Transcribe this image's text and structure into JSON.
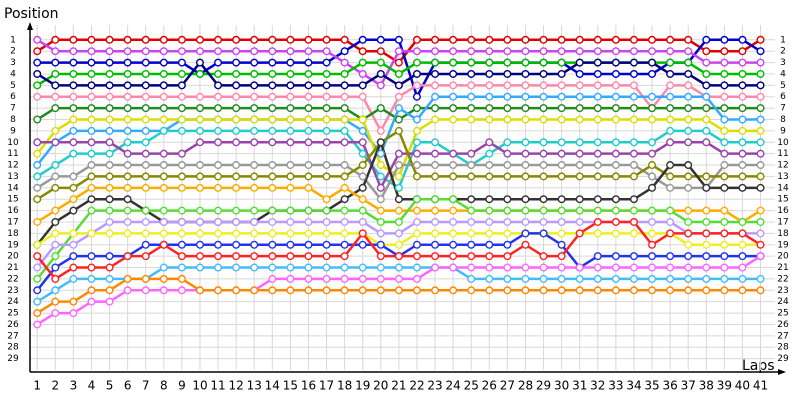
{
  "chart_data": {
    "type": "line",
    "x_label": "Laps",
    "y_label": "Position",
    "y_inverted": true,
    "grid": true,
    "x": [
      1,
      2,
      3,
      4,
      5,
      6,
      7,
      8,
      9,
      10,
      11,
      12,
      13,
      14,
      15,
      16,
      17,
      18,
      19,
      20,
      21,
      22,
      23,
      24,
      25,
      26,
      27,
      28,
      29,
      30,
      31,
      32,
      33,
      34,
      35,
      36,
      37,
      38,
      39,
      40,
      41
    ],
    "xticks": [
      1,
      2,
      3,
      4,
      5,
      6,
      7,
      8,
      9,
      10,
      11,
      12,
      13,
      14,
      15,
      16,
      17,
      18,
      19,
      20,
      21,
      22,
      23,
      24,
      25,
      26,
      27,
      28,
      29,
      30,
      31,
      32,
      33,
      34,
      35,
      36,
      37,
      38,
      39,
      40,
      41
    ],
    "xlim": [
      0.6,
      41.8
    ],
    "ylim": [
      -0.3,
      30
    ],
    "yticks": [
      1,
      2,
      3,
      4,
      5,
      6,
      7,
      8,
      9,
      10,
      11,
      12,
      13,
      14,
      15,
      16,
      17,
      18,
      19,
      20,
      21,
      22,
      23,
      24,
      25,
      26,
      27,
      28,
      29
    ],
    "series": [
      {
        "color": "#e00000",
        "values": [
          2,
          1,
          1,
          1,
          1,
          1,
          1,
          1,
          1,
          1,
          1,
          1,
          1,
          1,
          1,
          1,
          1,
          1,
          2,
          2,
          3,
          1,
          1,
          1,
          1,
          1,
          1,
          1,
          1,
          1,
          1,
          1,
          1,
          1,
          1,
          1,
          1,
          2,
          2,
          2,
          1
        ]
      },
      {
        "color": "#0000cc",
        "values": [
          3,
          3,
          3,
          3,
          3,
          3,
          3,
          3,
          3,
          4,
          3,
          3,
          3,
          3,
          3,
          3,
          3,
          2,
          1,
          1,
          1,
          6,
          3,
          3,
          3,
          3,
          3,
          3,
          3,
          3,
          4,
          4,
          4,
          4,
          4,
          3,
          3,
          1,
          1,
          1,
          2
        ]
      },
      {
        "color": "#cc44ee",
        "values": [
          1,
          2,
          2,
          2,
          2,
          2,
          2,
          2,
          2,
          2,
          2,
          2,
          2,
          2,
          2,
          2,
          2,
          3,
          4,
          5,
          2,
          2,
          2,
          2,
          2,
          2,
          2,
          2,
          2,
          2,
          2,
          2,
          2,
          2,
          2,
          2,
          2,
          3,
          3,
          3,
          3
        ]
      },
      {
        "color": "#00bb00",
        "values": [
          5,
          4,
          4,
          4,
          4,
          4,
          4,
          4,
          4,
          4,
          4,
          4,
          4,
          4,
          4,
          4,
          4,
          4,
          3,
          3,
          4,
          3,
          3,
          3,
          3,
          3,
          3,
          3,
          3,
          3,
          3,
          3,
          3,
          3,
          3,
          3,
          3,
          4,
          4,
          4,
          4
        ]
      },
      {
        "color": "#000080",
        "values": [
          4,
          5,
          5,
          5,
          5,
          5,
          5,
          5,
          5,
          3,
          5,
          5,
          5,
          5,
          5,
          5,
          5,
          5,
          5,
          4,
          5,
          4,
          4,
          4,
          4,
          4,
          4,
          4,
          4,
          4,
          3,
          3,
          3,
          3,
          3,
          4,
          4,
          5,
          5,
          5,
          5
        ]
      },
      {
        "color": "#ff88aa",
        "values": [
          6,
          6,
          6,
          6,
          6,
          6,
          6,
          6,
          6,
          6,
          6,
          6,
          6,
          6,
          6,
          6,
          6,
          6,
          6,
          9,
          6,
          5,
          5,
          5,
          5,
          5,
          5,
          5,
          5,
          5,
          5,
          5,
          5,
          5,
          7,
          5,
          5,
          6,
          6,
          6,
          6
        ]
      },
      {
        "color": "#228822",
        "values": [
          8,
          7,
          7,
          7,
          7,
          7,
          7,
          7,
          7,
          7,
          7,
          7,
          7,
          7,
          7,
          7,
          7,
          7,
          8,
          7,
          8,
          7,
          7,
          7,
          7,
          7,
          7,
          7,
          7,
          7,
          7,
          7,
          7,
          7,
          7,
          7,
          7,
          7,
          7,
          7,
          7
        ]
      },
      {
        "color": "#33aaff",
        "values": [
          12,
          10,
          9,
          9,
          9,
          9,
          9,
          9,
          8,
          8,
          8,
          8,
          8,
          8,
          8,
          8,
          8,
          8,
          9,
          11,
          7,
          8,
          6,
          6,
          6,
          6,
          6,
          6,
          6,
          6,
          6,
          6,
          6,
          6,
          6,
          6,
          6,
          6,
          8,
          8,
          8
        ]
      },
      {
        "color": "#dddd00",
        "values": [
          11,
          9,
          8,
          8,
          8,
          8,
          8,
          8,
          8,
          8,
          8,
          8,
          8,
          8,
          8,
          8,
          8,
          8,
          8,
          12,
          13,
          9,
          8,
          8,
          8,
          8,
          8,
          8,
          8,
          8,
          8,
          8,
          8,
          8,
          8,
          8,
          8,
          8,
          9,
          9,
          9
        ]
      },
      {
        "color": "#22cccc",
        "values": [
          13,
          12,
          11,
          11,
          11,
          10,
          10,
          9,
          9,
          9,
          9,
          9,
          9,
          9,
          9,
          9,
          9,
          9,
          11,
          13,
          14,
          10,
          10,
          11,
          12,
          11,
          10,
          10,
          10,
          10,
          10,
          10,
          10,
          10,
          10,
          9,
          9,
          9,
          10,
          10,
          10
        ]
      },
      {
        "color": "#9944aa",
        "values": [
          10,
          10,
          10,
          10,
          10,
          11,
          11,
          11,
          11,
          10,
          10,
          10,
          10,
          10,
          10,
          10,
          10,
          10,
          10,
          14,
          11,
          11,
          11,
          11,
          11,
          10,
          11,
          11,
          11,
          11,
          11,
          11,
          11,
          11,
          11,
          10,
          10,
          10,
          11,
          11,
          11
        ]
      },
      {
        "color": "#999999",
        "values": [
          14,
          13,
          13,
          12,
          12,
          12,
          12,
          12,
          12,
          12,
          12,
          12,
          12,
          12,
          12,
          12,
          12,
          12,
          13,
          15,
          12,
          12,
          12,
          12,
          12,
          12,
          12,
          12,
          12,
          12,
          12,
          12,
          12,
          12,
          13,
          14,
          14,
          14,
          12,
          12,
          12
        ]
      },
      {
        "color": "#888800",
        "values": [
          15,
          14,
          14,
          13,
          13,
          13,
          13,
          13,
          13,
          13,
          13,
          13,
          13,
          13,
          13,
          13,
          13,
          13,
          12,
          10,
          9,
          13,
          13,
          13,
          13,
          13,
          13,
          13,
          13,
          13,
          13,
          13,
          13,
          13,
          12,
          13,
          13,
          13,
          13,
          13,
          13
        ]
      },
      {
        "color": "#333333",
        "values": [
          19,
          17,
          16,
          15,
          15,
          15,
          16,
          17,
          17,
          17,
          17,
          17,
          17,
          16,
          16,
          16,
          16,
          15,
          14,
          10,
          15,
          15,
          15,
          15,
          15,
          15,
          15,
          15,
          15,
          15,
          15,
          15,
          15,
          15,
          14,
          12,
          12,
          14,
          14,
          14,
          14
        ]
      },
      {
        "color": "#ffaa00",
        "values": [
          17,
          16,
          15,
          14,
          14,
          14,
          14,
          14,
          14,
          14,
          14,
          14,
          14,
          14,
          14,
          14,
          15,
          14,
          15,
          16,
          16,
          16,
          16,
          16,
          16,
          16,
          16,
          16,
          16,
          16,
          16,
          16,
          16,
          16,
          16,
          16,
          16,
          16,
          16,
          17,
          16
        ]
      },
      {
        "color": "#55dd33",
        "values": [
          22,
          20,
          18,
          16,
          16,
          16,
          16,
          16,
          16,
          16,
          16,
          16,
          16,
          16,
          16,
          16,
          16,
          16,
          16,
          17,
          17,
          15,
          15,
          15,
          16,
          16,
          16,
          16,
          16,
          16,
          16,
          16,
          16,
          16,
          16,
          16,
          17,
          17,
          17,
          17,
          17
        ]
      },
      {
        "color": "#bb99ff",
        "values": [
          21,
          19,
          19,
          18,
          17,
          17,
          17,
          17,
          17,
          17,
          17,
          17,
          17,
          17,
          17,
          17,
          17,
          17,
          17,
          18,
          18,
          17,
          17,
          17,
          17,
          17,
          17,
          17,
          17,
          17,
          17,
          17,
          17,
          17,
          17,
          17,
          18,
          18,
          18,
          18,
          18
        ]
      },
      {
        "color": "#eeee22",
        "values": [
          19,
          18,
          18,
          18,
          18,
          18,
          18,
          18,
          18,
          18,
          18,
          18,
          18,
          18,
          18,
          18,
          18,
          18,
          18,
          19,
          19,
          18,
          18,
          18,
          18,
          18,
          18,
          18,
          18,
          18,
          18,
          18,
          18,
          18,
          18,
          18,
          19,
          19,
          19,
          19,
          19
        ]
      },
      {
        "color": "#2233ee",
        "values": [
          23,
          21,
          20,
          20,
          20,
          20,
          19,
          19,
          19,
          19,
          19,
          19,
          19,
          19,
          19,
          19,
          19,
          19,
          19,
          19,
          20,
          19,
          19,
          19,
          19,
          19,
          19,
          18,
          18,
          19,
          21,
          20,
          20,
          20,
          20,
          20,
          20,
          20,
          20,
          20,
          20
        ]
      },
      {
        "color": "#ff2222",
        "values": [
          20,
          22,
          21,
          21,
          21,
          20,
          20,
          19,
          20,
          20,
          20,
          20,
          20,
          20,
          20,
          20,
          20,
          20,
          18,
          20,
          20,
          20,
          20,
          20,
          20,
          20,
          20,
          19,
          20,
          20,
          18,
          17,
          17,
          17,
          19,
          18,
          18,
          18,
          18,
          18,
          19
        ]
      },
      {
        "color": "#44bbff",
        "values": [
          24,
          23,
          22,
          22,
          22,
          22,
          22,
          21,
          21,
          21,
          21,
          21,
          21,
          21,
          21,
          21,
          21,
          21,
          21,
          21,
          21,
          21,
          21,
          21,
          22,
          22,
          22,
          22,
          22,
          22,
          22,
          22,
          22,
          22,
          22,
          22,
          22,
          22,
          22,
          22,
          22
        ]
      },
      {
        "color": "#ff66ff",
        "values": [
          26,
          25,
          25,
          24,
          24,
          23,
          23,
          23,
          23,
          23,
          23,
          23,
          23,
          22,
          22,
          22,
          22,
          22,
          22,
          22,
          22,
          22,
          21,
          21,
          21,
          21,
          21,
          21,
          21,
          21,
          21,
          21,
          21,
          21,
          21,
          21,
          21,
          21,
          21,
          21,
          20
        ]
      },
      {
        "color": "#ff8800",
        "values": [
          25,
          24,
          24,
          23,
          23,
          22,
          22,
          22,
          22,
          23,
          23,
          23,
          23,
          23,
          23,
          23,
          23,
          23,
          23,
          23,
          23,
          23,
          23,
          23,
          23,
          23,
          23,
          23,
          23,
          23,
          23,
          23,
          23,
          23,
          23,
          23,
          23,
          23,
          23,
          23,
          23
        ]
      }
    ]
  }
}
